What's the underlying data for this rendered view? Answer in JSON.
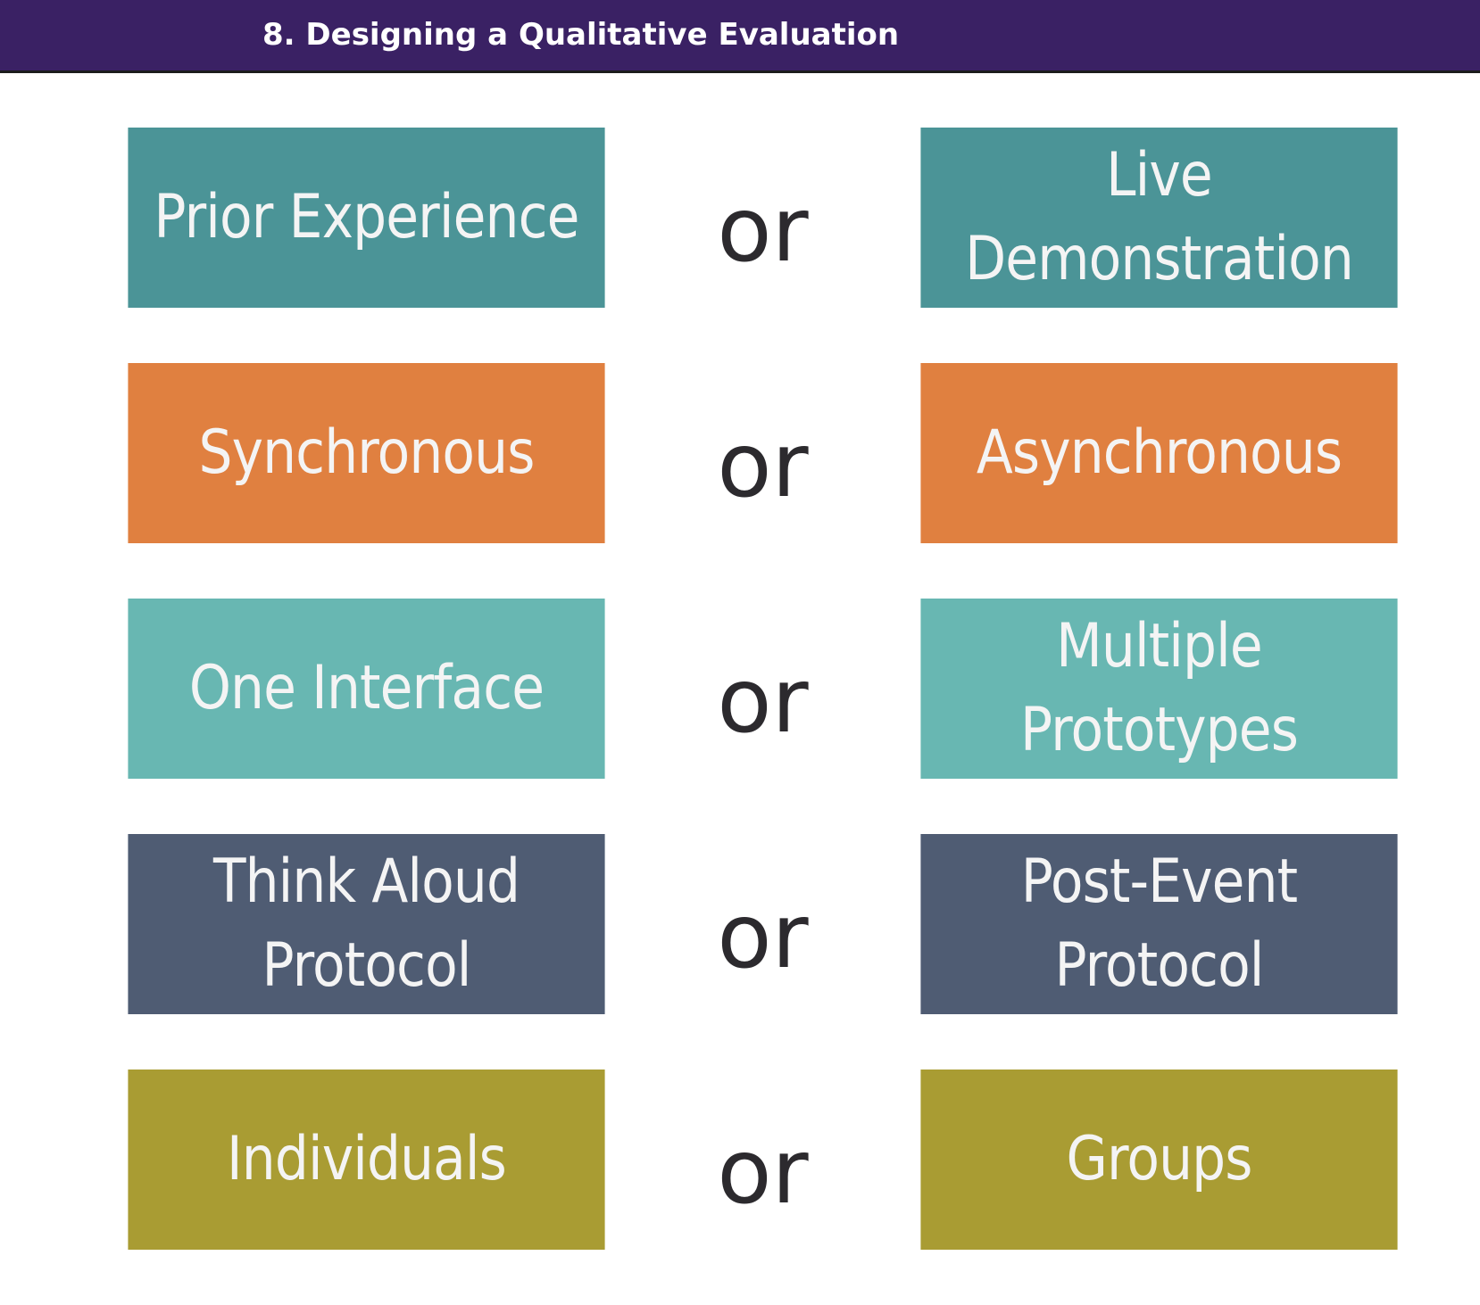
{
  "header": {
    "title": "8. Designing a Qualitative Evaluation",
    "background": "#3a2164"
  },
  "separator": "or",
  "rows": [
    {
      "left": "Prior Experience",
      "right": "Live\nDemonstration",
      "color": "#4b9497"
    },
    {
      "left": "Synchronous",
      "right": "Asynchronous",
      "color": "#e08040"
    },
    {
      "left": "One Interface",
      "right": "Multiple\nPrototypes",
      "color": "#68b7b2"
    },
    {
      "left": "Think Aloud\nProtocol",
      "right": "Post-Event\nProtocol",
      "color": "#4f5c73"
    },
    {
      "left": "Individuals",
      "right": "Groups",
      "color": "#a99c33"
    }
  ]
}
